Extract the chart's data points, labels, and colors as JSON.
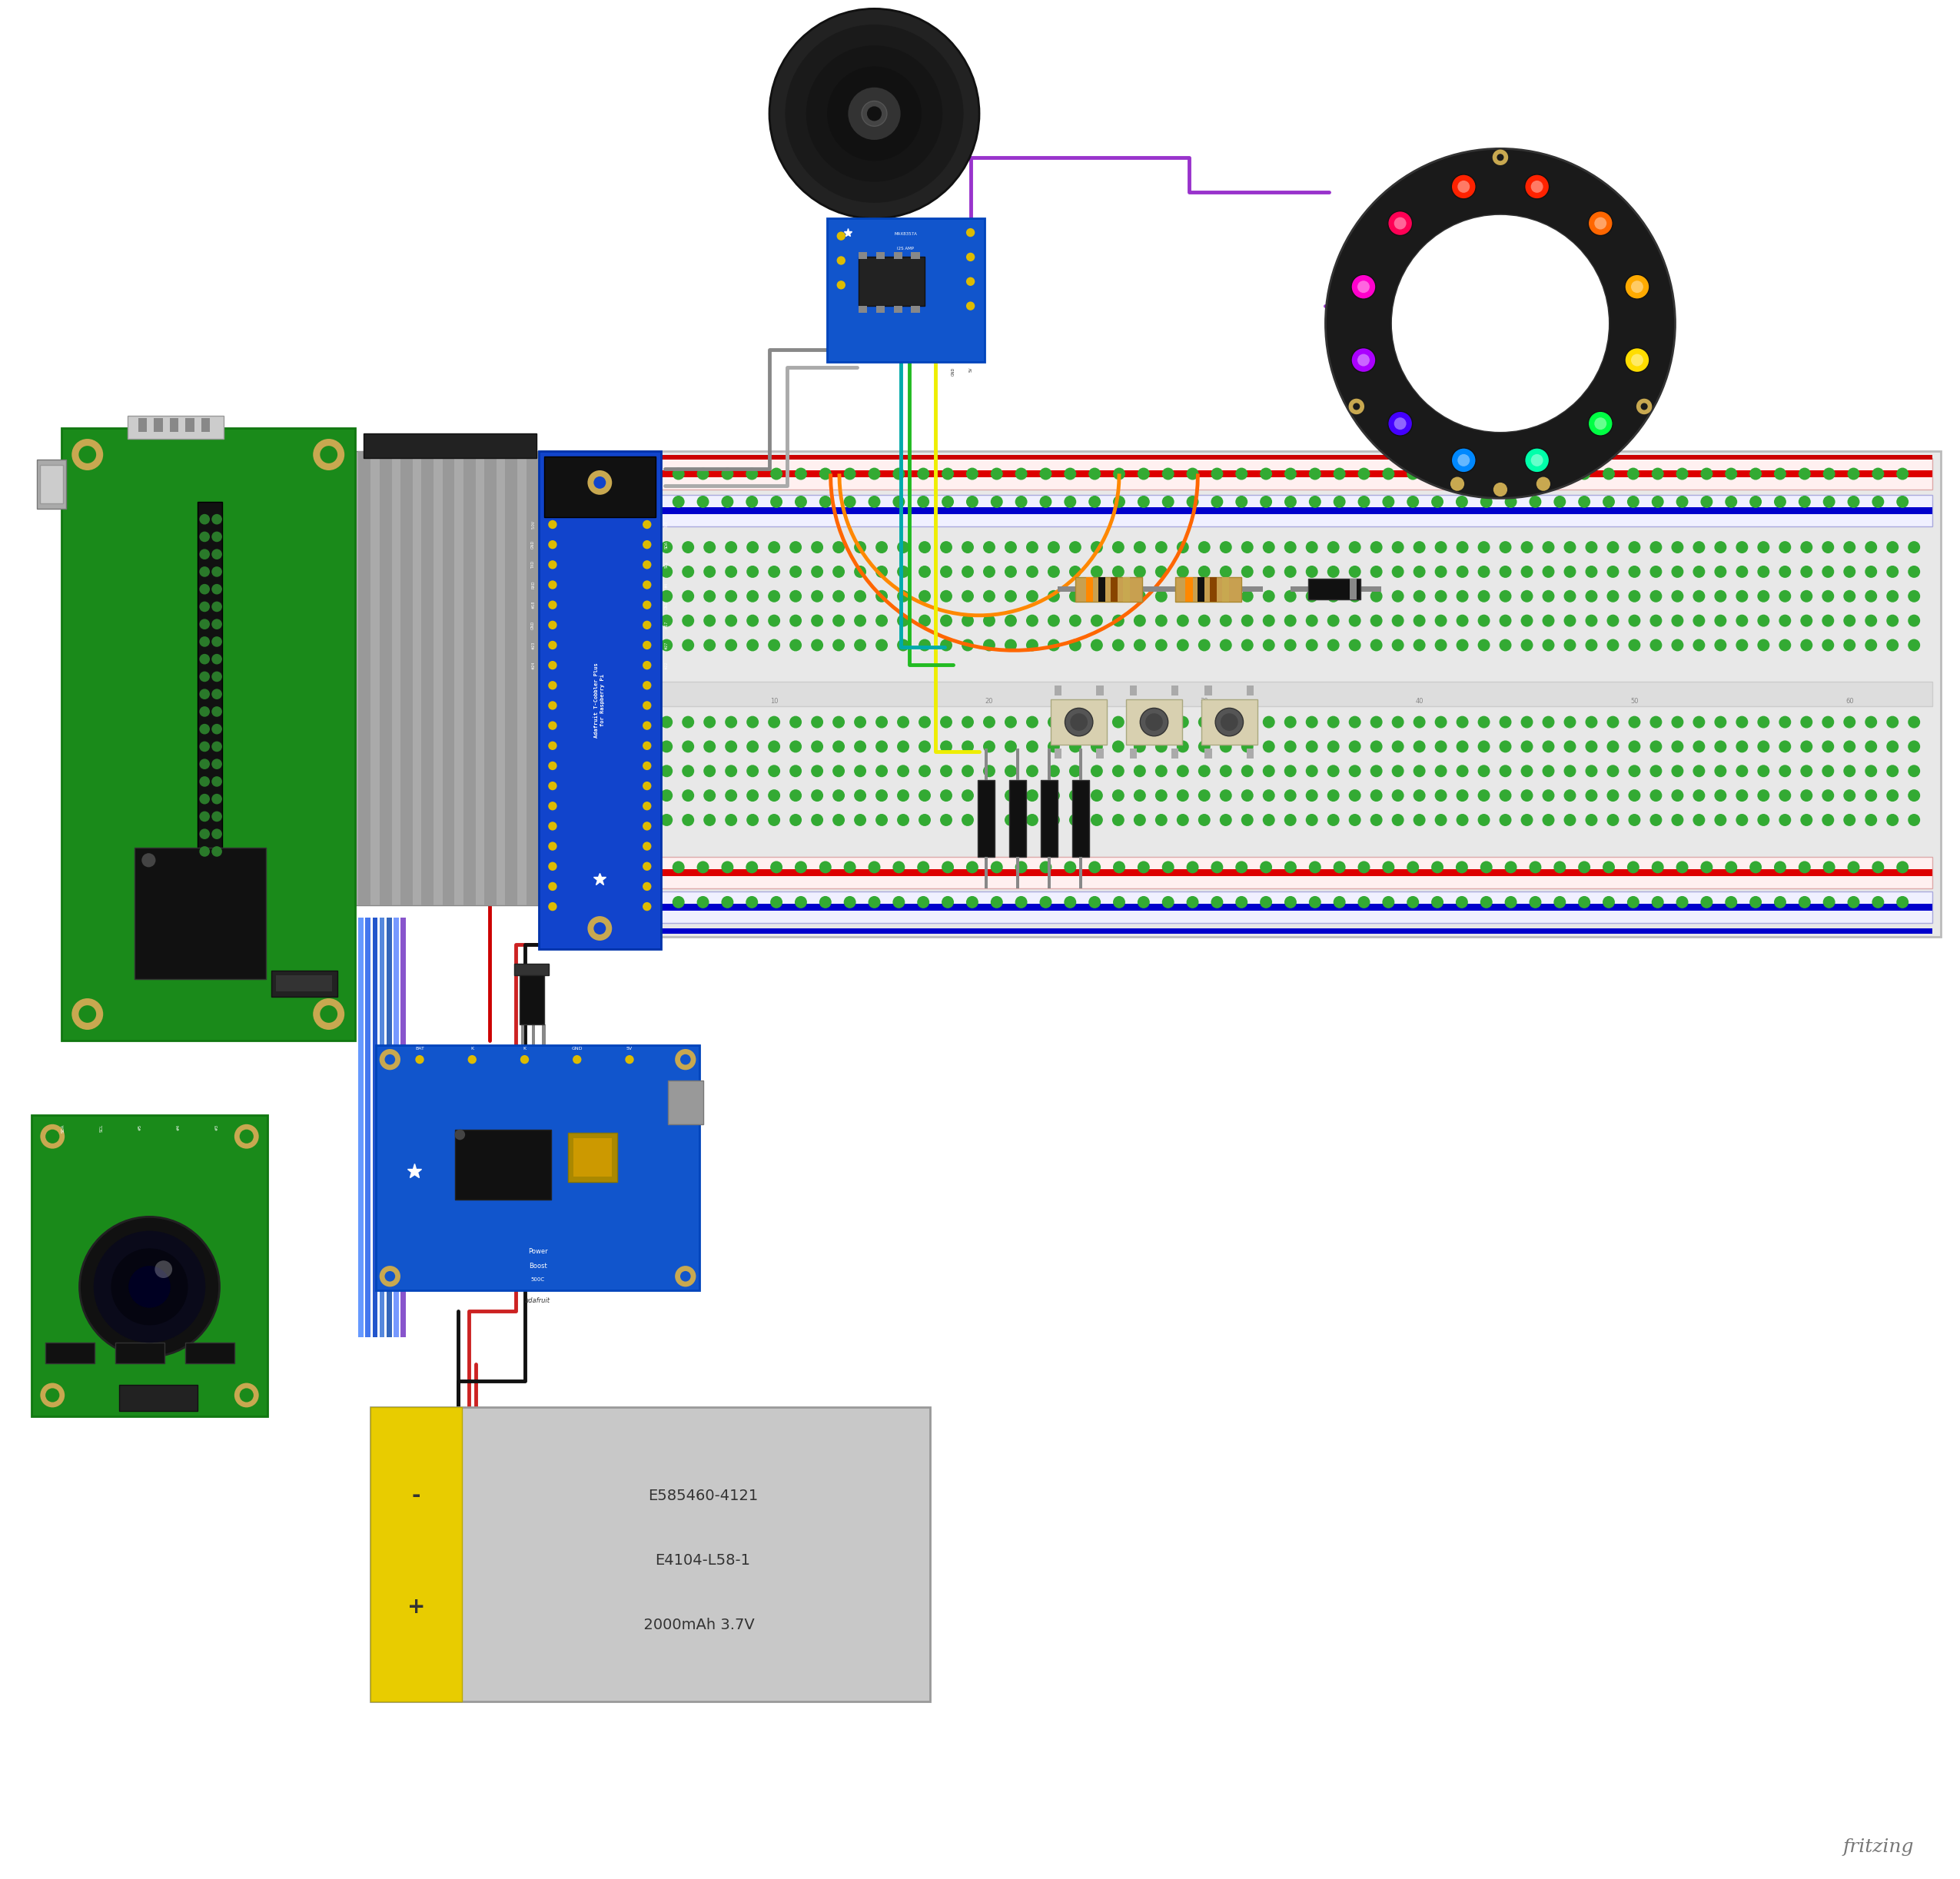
{
  "bg_color": "#ffffff",
  "fig_width": 25.5,
  "fig_height": 24.45,
  "fritzing_text": "fritzing",
  "battery_line1": "E585460-4121",
  "battery_line2": "E4104-L58-1",
  "battery_line3": "  2000mAh 3.7V",
  "scale": 2.275
}
